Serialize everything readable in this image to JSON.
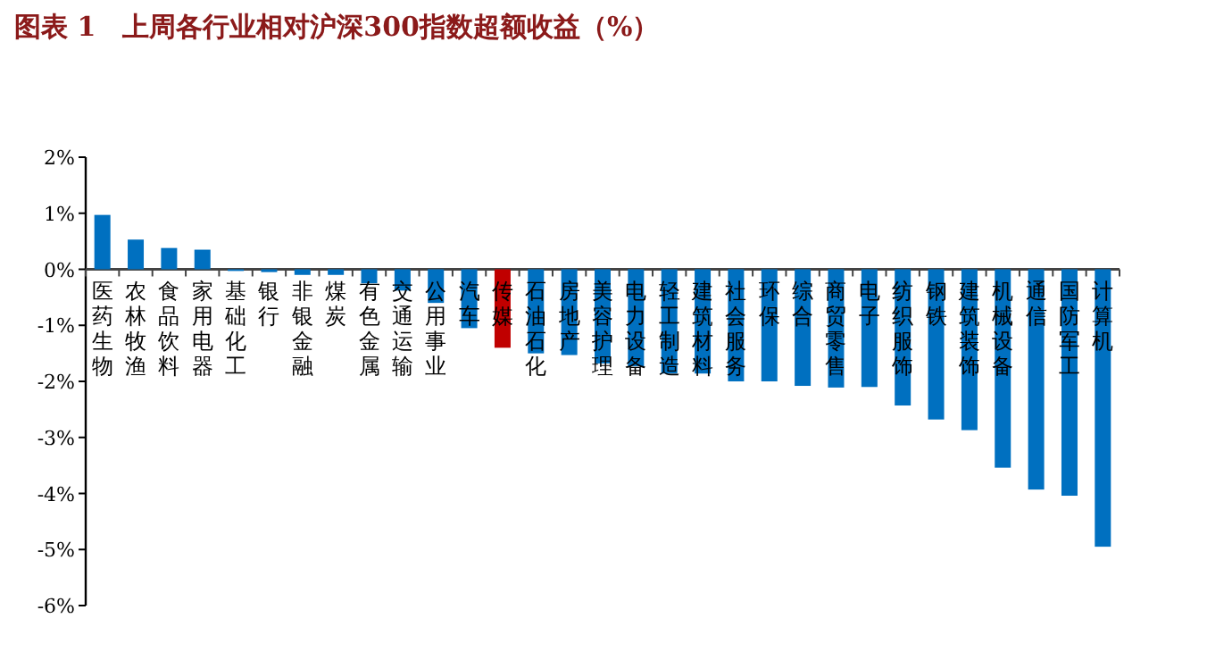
{
  "chart_data": {
    "type": "bar",
    "title": "图表 1　上周各行业相对沪深300指数超额收益（%）",
    "categories": [
      "医药生物",
      "农林牧渔",
      "食品饮料",
      "家用电器",
      "基础化工",
      "银行",
      "非银金融",
      "煤炭",
      "有色金属",
      "交通运输",
      "公用事业",
      "汽车",
      "传媒",
      "石油石化",
      "房地产",
      "美容护理",
      "电力设备",
      "轻工制造",
      "建筑材料",
      "社会服务",
      "环保",
      "综合",
      "商贸零售",
      "电子",
      "纺织服饰",
      "钢铁",
      "建筑装饰",
      "机械设备",
      "通信",
      "国防军工",
      "计算机"
    ],
    "values": [
      0.97,
      0.53,
      0.38,
      0.35,
      -0.03,
      -0.05,
      -0.1,
      -0.1,
      -0.25,
      -0.38,
      -0.6,
      -1.05,
      -1.4,
      -1.5,
      -1.53,
      -1.68,
      -1.73,
      -1.86,
      -1.86,
      -2.0,
      -2.0,
      -2.08,
      -2.11,
      -2.1,
      -2.43,
      -2.68,
      -2.87,
      -3.54,
      -3.93,
      -4.04,
      -4.95
    ],
    "colors": [
      "#0070c0",
      "#0070c0",
      "#0070c0",
      "#0070c0",
      "#0070c0",
      "#0070c0",
      "#0070c0",
      "#0070c0",
      "#0070c0",
      "#0070c0",
      "#0070c0",
      "#0070c0",
      "#c00000",
      "#0070c0",
      "#0070c0",
      "#0070c0",
      "#0070c0",
      "#0070c0",
      "#0070c0",
      "#0070c0",
      "#0070c0",
      "#0070c0",
      "#0070c0",
      "#0070c0",
      "#0070c0",
      "#0070c0",
      "#0070c0",
      "#0070c0",
      "#0070c0",
      "#0070c0",
      "#0070c0"
    ],
    "ylim": [
      -6,
      2
    ],
    "yticks": [
      {
        "value": 2,
        "label": "2%"
      },
      {
        "value": 1,
        "label": "1%"
      },
      {
        "value": 0,
        "label": "0%"
      },
      {
        "value": -1,
        "label": "-1%"
      },
      {
        "value": -2,
        "label": "-2%"
      },
      {
        "value": -3,
        "label": "-3%"
      },
      {
        "value": -4,
        "label": "-4%"
      },
      {
        "value": -5,
        "label": "-5%"
      },
      {
        "value": -6,
        "label": "-6%"
      }
    ]
  }
}
